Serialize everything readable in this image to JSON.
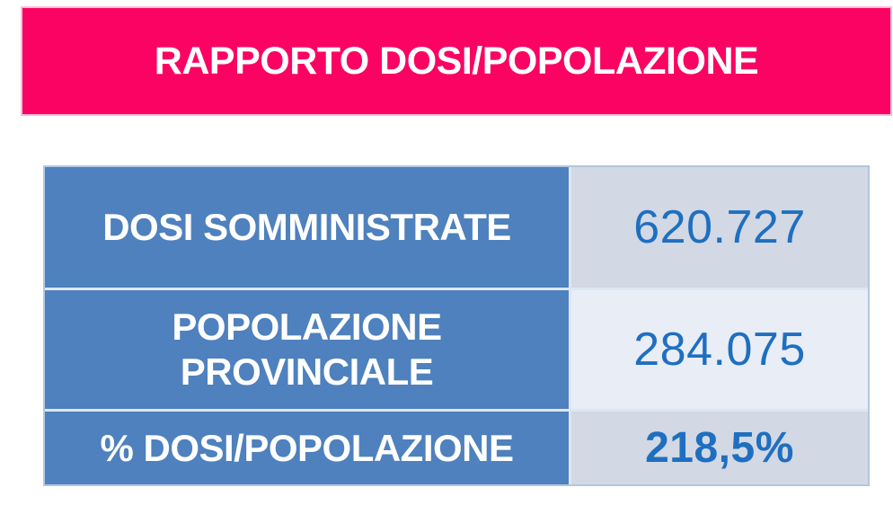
{
  "banner": {
    "title": "RAPPORTO DOSI/POPOLAZIONE"
  },
  "table": {
    "rows": [
      {
        "label": "DOSI SOMMINISTRATE",
        "value": "620.727"
      },
      {
        "label": "POPOLAZIONE PROVINCIALE",
        "value": "284.075"
      },
      {
        "label": "% DOSI/POPOLAZIONE",
        "value": "218,5%"
      }
    ]
  },
  "colors": {
    "banner_bg": "#fb0362",
    "banner_border": "#f9bcd6",
    "label_cell_bg": "#4e81bd",
    "value_cell_bg_odd": "#d2d8e4",
    "value_cell_bg_even": "#e9edf5",
    "value_text": "#1e6fc0",
    "table_border": "#b3c6e0",
    "separator": "#dde7f3"
  }
}
